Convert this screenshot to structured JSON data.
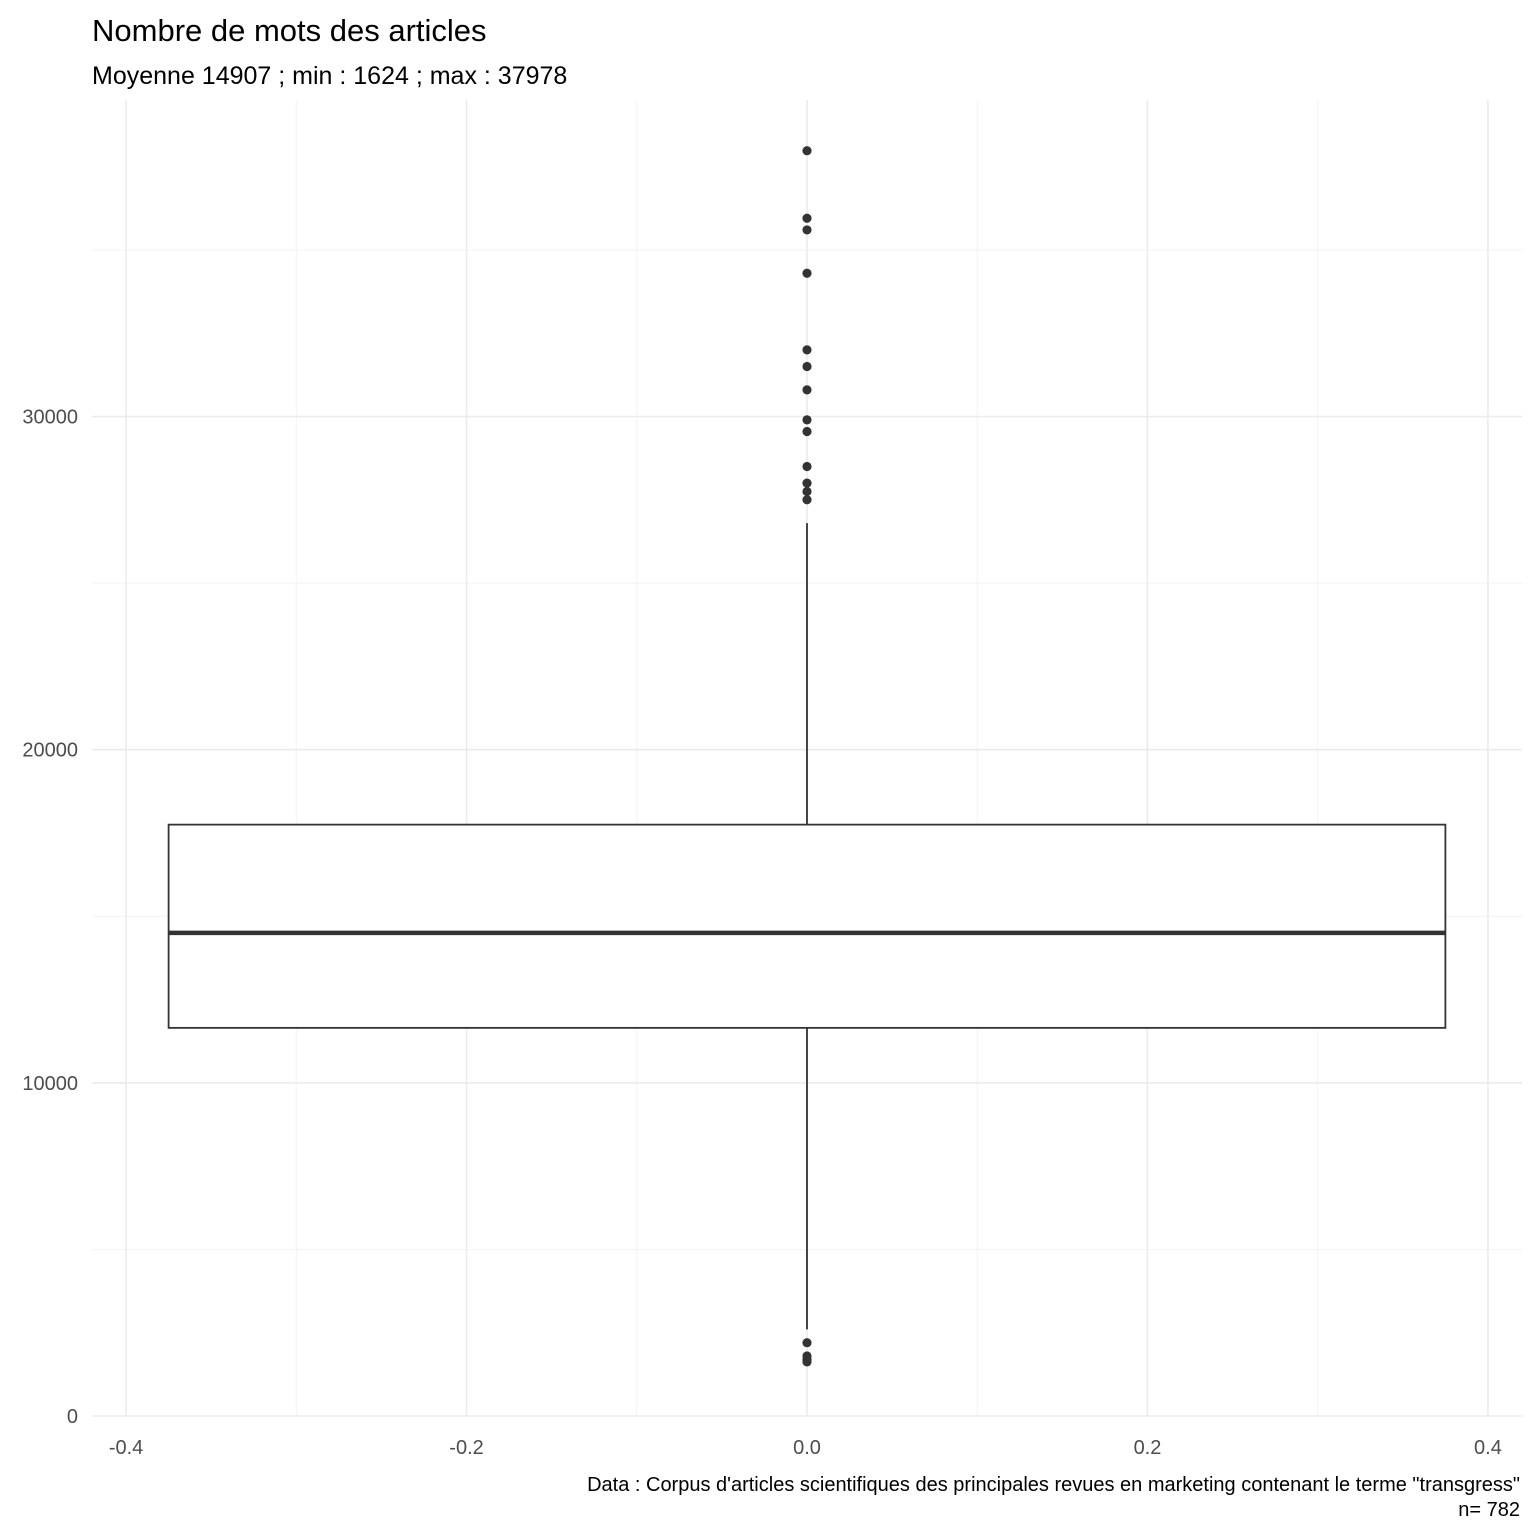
{
  "chart_data": {
    "type": "boxplot",
    "title": "Nombre de mots des articles",
    "subtitle": "Moyenne 14907 ; min : 1624 ; max : 37978",
    "caption_lines": [
      "Data : Corpus d'articles scientifiques des principales revues en marketing contenant le terme \"transgress\"",
      "n= 782"
    ],
    "xlim": [
      -0.42,
      0.42
    ],
    "ylim": [
      0,
      39500
    ],
    "x_ticks": [
      -0.4,
      -0.2,
      0.0,
      0.2,
      0.4
    ],
    "x_tick_labels": [
      "-0.4",
      "-0.2",
      "0.0",
      "0.2",
      "0.4"
    ],
    "y_ticks": [
      0,
      10000,
      20000,
      30000
    ],
    "y_tick_labels": [
      "0",
      "10000",
      "20000",
      "30000"
    ],
    "grid": true,
    "box": {
      "x": 0,
      "width": 0.75,
      "q1": 11650,
      "median": 14500,
      "q3": 17750,
      "whisker_low": 2600,
      "whisker_high": 26800
    },
    "outliers": [
      37978,
      35950,
      35600,
      34300,
      32000,
      31500,
      30800,
      29900,
      29550,
      28500,
      28000,
      27750,
      27500,
      2200,
      1800,
      1700,
      1624
    ],
    "colors": {
      "box_fill": "#ffffff",
      "box_stroke": "#333333",
      "points": "#333333"
    }
  }
}
